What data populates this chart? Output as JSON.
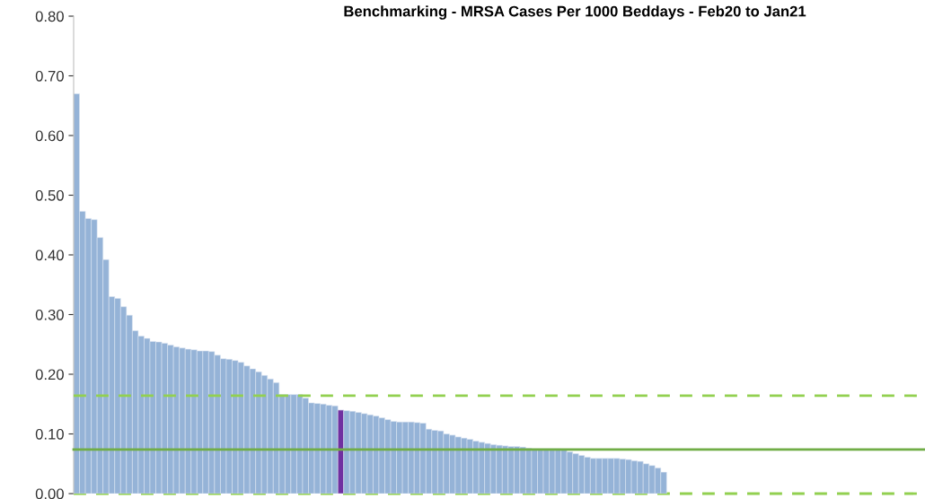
{
  "chart_data": {
    "type": "bar",
    "title": "Benchmarking - MRSA Cases Per 1000 Beddays - Feb20 to Jan21",
    "categories": [
      null,
      null,
      null,
      null,
      null,
      null,
      null,
      null,
      null,
      null,
      null,
      null,
      null,
      null,
      null,
      null,
      null,
      null,
      null,
      null,
      null,
      null,
      null,
      null,
      null,
      null,
      null,
      null,
      null,
      null,
      null,
      null,
      null,
      null,
      null,
      null,
      null,
      null,
      null,
      null,
      null,
      null,
      null,
      null,
      null,
      null,
      null,
      null,
      null,
      null,
      null,
      null,
      null,
      null,
      null,
      null,
      null,
      null,
      null,
      null,
      null,
      null,
      null,
      null,
      null,
      null,
      null,
      null,
      null,
      null,
      null,
      null,
      null,
      null,
      null,
      null,
      null,
      null,
      null,
      null,
      null,
      null,
      null,
      null,
      null,
      null,
      null,
      null,
      null,
      null,
      null,
      null,
      null,
      null,
      null,
      null,
      null,
      null,
      null,
      null,
      null,
      null,
      null,
      null,
      null,
      null,
      null,
      null,
      null,
      null,
      null,
      null,
      null,
      null,
      null,
      null,
      null,
      null,
      null,
      null,
      null,
      null,
      null,
      null,
      null,
      null,
      null,
      null,
      null,
      null,
      null,
      null,
      null,
      null,
      null,
      null,
      null,
      null,
      null,
      null,
      null,
      null,
      null,
      null,
      null
    ],
    "values": [
      0.67,
      0.473,
      0.461,
      0.459,
      0.429,
      0.392,
      0.33,
      0.327,
      0.313,
      0.299,
      0.273,
      0.264,
      0.26,
      0.255,
      0.254,
      0.252,
      0.249,
      0.246,
      0.244,
      0.242,
      0.241,
      0.239,
      0.239,
      0.238,
      0.232,
      0.226,
      0.225,
      0.223,
      0.22,
      0.214,
      0.209,
      0.204,
      0.198,
      0.192,
      0.186,
      0.166,
      0.166,
      0.166,
      0.166,
      0.16,
      0.152,
      0.151,
      0.15,
      0.148,
      0.147,
      0.14,
      0.139,
      0.138,
      0.136,
      0.134,
      0.132,
      0.13,
      0.127,
      0.124,
      0.121,
      0.12,
      0.12,
      0.12,
      0.119,
      0.118,
      0.108,
      0.106,
      0.105,
      0.1,
      0.098,
      0.095,
      0.093,
      0.091,
      0.088,
      0.086,
      0.084,
      0.082,
      0.081,
      0.08,
      0.079,
      0.079,
      0.078,
      0.076,
      0.075,
      0.075,
      0.075,
      0.075,
      0.075,
      0.074,
      0.07,
      0.067,
      0.064,
      0.061,
      0.059,
      0.059,
      0.059,
      0.059,
      0.059,
      0.058,
      0.057,
      0.055,
      0.054,
      0.05,
      0.047,
      0.043,
      0.036,
      null,
      null,
      null,
      null,
      null,
      null,
      null,
      null,
      null,
      null,
      null,
      null,
      null,
      null,
      null,
      null,
      null,
      null,
      null,
      null,
      null,
      null,
      null,
      null,
      null,
      null,
      null,
      null,
      null,
      null,
      null,
      null,
      null,
      null,
      null,
      null,
      null,
      null,
      null,
      null,
      null,
      null,
      null,
      null
    ],
    "colors": [
      "#95b3d7",
      "#95b3d7",
      "#95b3d7",
      "#95b3d7",
      "#95b3d7",
      "#95b3d7",
      "#95b3d7",
      "#95b3d7",
      "#95b3d7",
      "#95b3d7",
      "#95b3d7",
      "#95b3d7",
      "#95b3d7",
      "#95b3d7",
      "#95b3d7",
      "#95b3d7",
      "#95b3d7",
      "#95b3d7",
      "#95b3d7",
      "#95b3d7",
      "#95b3d7",
      "#95b3d7",
      "#95b3d7",
      "#95b3d7",
      "#95b3d7",
      "#95b3d7",
      "#95b3d7",
      "#95b3d7",
      "#95b3d7",
      "#95b3d7",
      "#95b3d7",
      "#95b3d7",
      "#95b3d7",
      "#95b3d7",
      "#95b3d7",
      "#95b3d7",
      "#95b3d7",
      "#95b3d7",
      "#95b3d7",
      "#95b3d7",
      "#95b3d7",
      "#95b3d7",
      "#95b3d7",
      "#95b3d7",
      "#95b3d7",
      "#7030a0",
      "#95b3d7",
      "#95b3d7",
      "#95b3d7",
      "#95b3d7",
      "#95b3d7",
      "#95b3d7",
      "#95b3d7",
      "#95b3d7",
      "#95b3d7",
      "#95b3d7",
      "#95b3d7",
      "#95b3d7",
      "#95b3d7",
      "#95b3d7",
      "#95b3d7",
      "#95b3d7",
      "#95b3d7",
      "#95b3d7",
      "#95b3d7",
      "#95b3d7",
      "#95b3d7",
      "#95b3d7",
      "#95b3d7",
      "#95b3d7",
      "#95b3d7",
      "#95b3d7",
      "#95b3d7",
      "#95b3d7",
      "#95b3d7",
      "#95b3d7",
      "#95b3d7",
      "#95b3d7",
      "#95b3d7",
      "#95b3d7",
      "#95b3d7",
      "#95b3d7",
      "#95b3d7",
      "#95b3d7",
      "#95b3d7",
      "#95b3d7",
      "#95b3d7",
      "#95b3d7",
      "#95b3d7",
      "#95b3d7",
      "#95b3d7",
      "#95b3d7",
      "#95b3d7",
      "#95b3d7",
      "#95b3d7",
      "#95b3d7",
      "#95b3d7",
      "#95b3d7",
      "#95b3d7",
      "#95b3d7",
      "#95b3d7",
      "#95b3d7",
      "#95b3d7",
      "#95b3d7",
      "#95b3d7",
      "#95b3d7",
      "#95b3d7",
      "#95b3d7",
      "#95b3d7",
      "#95b3d7",
      "#95b3d7",
      "#95b3d7",
      "#95b3d7",
      "#95b3d7",
      "#95b3d7",
      "#95b3d7",
      "#95b3d7",
      "#95b3d7",
      "#95b3d7",
      "#95b3d7",
      "#95b3d7",
      "#95b3d7",
      "#95b3d7",
      "#95b3d7",
      "#95b3d7",
      "#95b3d7",
      "#95b3d7",
      "#95b3d7",
      "#95b3d7",
      "#95b3d7",
      "#95b3d7",
      "#95b3d7",
      "#95b3d7",
      "#95b3d7",
      "#95b3d7",
      "#95b3d7",
      "#95b3d7",
      "#95b3d7",
      "#95b3d7",
      "#95b3d7",
      "#95b3d7",
      "#95b3d7",
      "#95b3d7",
      "#95b3d7",
      "#95b3d7"
    ],
    "ylim": [
      0,
      0.8
    ],
    "yticks": [
      {
        "value": 0,
        "label": "0.00"
      },
      {
        "value": 0.1,
        "label": "0.10"
      },
      {
        "value": 0.2,
        "label": "0.20"
      },
      {
        "value": 0.3,
        "label": "0.30"
      },
      {
        "value": 0.4,
        "label": "0.40"
      },
      {
        "value": 0.5,
        "label": "0.50"
      },
      {
        "value": 0.6,
        "label": "0.60"
      },
      {
        "value": 0.7,
        "label": "0.70"
      },
      {
        "value": 0.8,
        "label": "0.80"
      }
    ],
    "ref_lines": [
      {
        "axis": "y",
        "value": 0.164,
        "color": "#92d050",
        "line_style": "dashed"
      },
      {
        "axis": "y",
        "value": 0.074,
        "color": "#70ad47",
        "line_style": "solid"
      },
      {
        "axis": "y",
        "value": 0,
        "color": "#92d050",
        "line_style": "dashed"
      }
    ],
    "grid": false,
    "tick_labels": "y"
  }
}
